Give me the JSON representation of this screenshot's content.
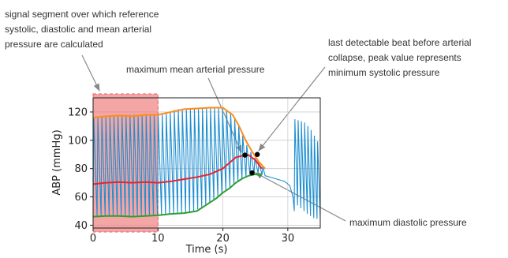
{
  "chart_data": {
    "type": "line",
    "xlabel": "Time (s)",
    "ylabel": "ABP (mmHg)",
    "xlim": [
      0,
      35
    ],
    "ylim": [
      38,
      130
    ],
    "xticks": [
      0,
      10,
      20,
      30
    ],
    "yticks": [
      40,
      60,
      80,
      100,
      120
    ],
    "grid": true,
    "reference_segment": {
      "x": [
        0,
        10
      ],
      "color": "#f08080"
    },
    "raw_signal": {
      "color": "#1f8fd0",
      "segments": [
        {
          "x_range": [
            0,
            26.5
          ],
          "period": 0.62,
          "systolic": [
            [
              0,
              116
            ],
            [
              5,
              118
            ],
            [
              10,
              118
            ],
            [
              13,
              122
            ],
            [
              16,
              122
            ],
            [
              19,
              123
            ],
            [
              21,
              121
            ],
            [
              22.5,
              110
            ],
            [
              23.5,
              98
            ],
            [
              24.5,
              90
            ],
            [
              25.5,
              84
            ],
            [
              26.5,
              80
            ]
          ],
          "diastolic": [
            [
              0,
              46
            ],
            [
              10,
              47
            ],
            [
              12,
              48
            ],
            [
              15,
              49
            ],
            [
              17,
              53
            ],
            [
              19,
              59
            ],
            [
              21,
              66
            ],
            [
              22.5,
              71
            ],
            [
              23.5,
              74
            ],
            [
              24.5,
              76
            ],
            [
              25.5,
              77
            ],
            [
              26.5,
              75
            ]
          ]
        },
        {
          "x_range": [
            26.5,
            31
          ],
          "shape": "decay",
          "points": [
            [
              26.5,
              75
            ],
            [
              28,
              73
            ],
            [
              29.5,
              71
            ],
            [
              30.3,
              68
            ],
            [
              30.8,
              60
            ],
            [
              31,
              50
            ]
          ]
        },
        {
          "x_range": [
            31,
            35
          ],
          "period": 0.5,
          "systolic": [
            [
              31,
              115
            ],
            [
              32.5,
              113
            ],
            [
              33.5,
              108
            ],
            [
              34.5,
              100
            ],
            [
              35,
              96
            ]
          ],
          "diastolic": [
            [
              31,
              56
            ],
            [
              32,
              52
            ],
            [
              33,
              48
            ],
            [
              34,
              45
            ],
            [
              35,
              44
            ]
          ]
        }
      ]
    },
    "envelopes": [
      {
        "role": "systolic",
        "color": "#ff8c1a",
        "points": [
          [
            0,
            116
          ],
          [
            2,
            117
          ],
          [
            4,
            117.5
          ],
          [
            6,
            117
          ],
          [
            8,
            118
          ],
          [
            10,
            118
          ],
          [
            12,
            120
          ],
          [
            14,
            122
          ],
          [
            16,
            122.5
          ],
          [
            18,
            123
          ],
          [
            20,
            123
          ],
          [
            21.5,
            118
          ],
          [
            22.5,
            110
          ],
          [
            23.5,
            100
          ],
          [
            24.5,
            92
          ],
          [
            25.5,
            85
          ],
          [
            26.5,
            80
          ]
        ]
      },
      {
        "role": "mean",
        "color": "#e8242f",
        "points": [
          [
            0,
            69
          ],
          [
            2,
            70
          ],
          [
            4,
            70.5
          ],
          [
            6,
            70
          ],
          [
            8,
            70.5
          ],
          [
            10,
            70
          ],
          [
            12,
            71
          ],
          [
            14,
            72.5
          ],
          [
            16,
            74
          ],
          [
            18,
            76
          ],
          [
            20,
            80
          ],
          [
            21,
            84
          ],
          [
            22,
            88
          ],
          [
            23,
            89
          ],
          [
            24,
            89.5
          ],
          [
            25,
            86
          ],
          [
            26,
            80
          ]
        ]
      },
      {
        "role": "diastolic",
        "color": "#2ca02c",
        "points": [
          [
            0,
            46
          ],
          [
            2,
            46.5
          ],
          [
            4,
            46.5
          ],
          [
            6,
            46
          ],
          [
            8,
            46.5
          ],
          [
            10,
            47
          ],
          [
            12,
            48
          ],
          [
            14,
            48.5
          ],
          [
            16,
            50
          ],
          [
            17,
            53
          ],
          [
            18,
            56
          ],
          [
            19,
            59
          ],
          [
            20,
            63
          ],
          [
            21,
            66
          ],
          [
            22,
            70
          ],
          [
            23,
            73
          ],
          [
            24,
            75
          ],
          [
            25,
            76
          ],
          [
            26,
            75
          ]
        ]
      }
    ],
    "markers": [
      {
        "name": "maximum-mean-arterial-pressure",
        "x": 23.4,
        "y": 89.5
      },
      {
        "name": "minimum-systolic-pressure",
        "x": 25.3,
        "y": 90
      },
      {
        "name": "maximum-diastolic-pressure",
        "x": 24.5,
        "y": 77
      }
    ]
  },
  "annotations": {
    "reference_segment": [
      "signal segment over which reference",
      "systolic, diastolic and mean arterial",
      "pressure are calculated"
    ],
    "max_mean": [
      "maximum mean arterial pressure"
    ],
    "last_beat": [
      "last detectable beat before arterial",
      "collapse, peak value represents",
      "minimum systolic pressure"
    ],
    "max_diastolic": [
      "maximum diastolic pressure"
    ]
  },
  "colors": {
    "annotation_arrow": "#888888",
    "axes": "#222222",
    "grid": "#cccccc",
    "marker": "#000000"
  }
}
